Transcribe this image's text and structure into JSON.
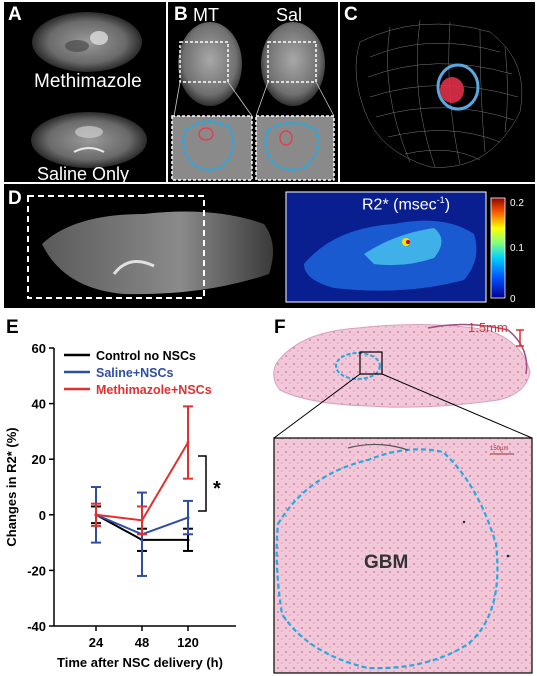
{
  "panels": {
    "A": {
      "label": "A",
      "top_text": "Methimazole",
      "bottom_text": "Saline Only"
    },
    "B": {
      "label": "B",
      "left_title": "MT",
      "right_title": "Sal"
    },
    "C": {
      "label": "C"
    },
    "D": {
      "label": "D",
      "map_title": "R2* (msec",
      "map_title_sup": "-1",
      "map_title_close": ")",
      "colorbar_ticks": [
        "0.2",
        "0.1",
        "0"
      ]
    },
    "E": {
      "label": "E"
    },
    "F": {
      "label": "F",
      "scale_bar": "1.5mm",
      "inset_scale": "150µm",
      "tumor_label": "GBM"
    }
  },
  "chart_data": {
    "type": "line",
    "xlabel": "Time after NSC delivery (h)",
    "ylabel": "Changes in R2* (%)",
    "categories": [
      "24",
      "48",
      "120"
    ],
    "ylim": [
      -40,
      60
    ],
    "yticks": [
      "60",
      "40",
      "20",
      "0",
      "-20",
      "-40"
    ],
    "significance": "*",
    "series": [
      {
        "name": "Control no NSCs",
        "color": "#000000",
        "values": [
          0,
          -9,
          -9
        ],
        "errors": [
          3,
          4,
          4
        ]
      },
      {
        "name": "Saline+NSCs",
        "color": "#2e4fa0",
        "values": [
          0,
          -7,
          -1
        ],
        "errors": [
          10,
          15,
          6
        ]
      },
      {
        "name": "Methimazole+NSCs",
        "color": "#e03030",
        "values": [
          0,
          -2,
          26
        ],
        "errors": [
          4,
          5,
          13
        ]
      }
    ]
  }
}
